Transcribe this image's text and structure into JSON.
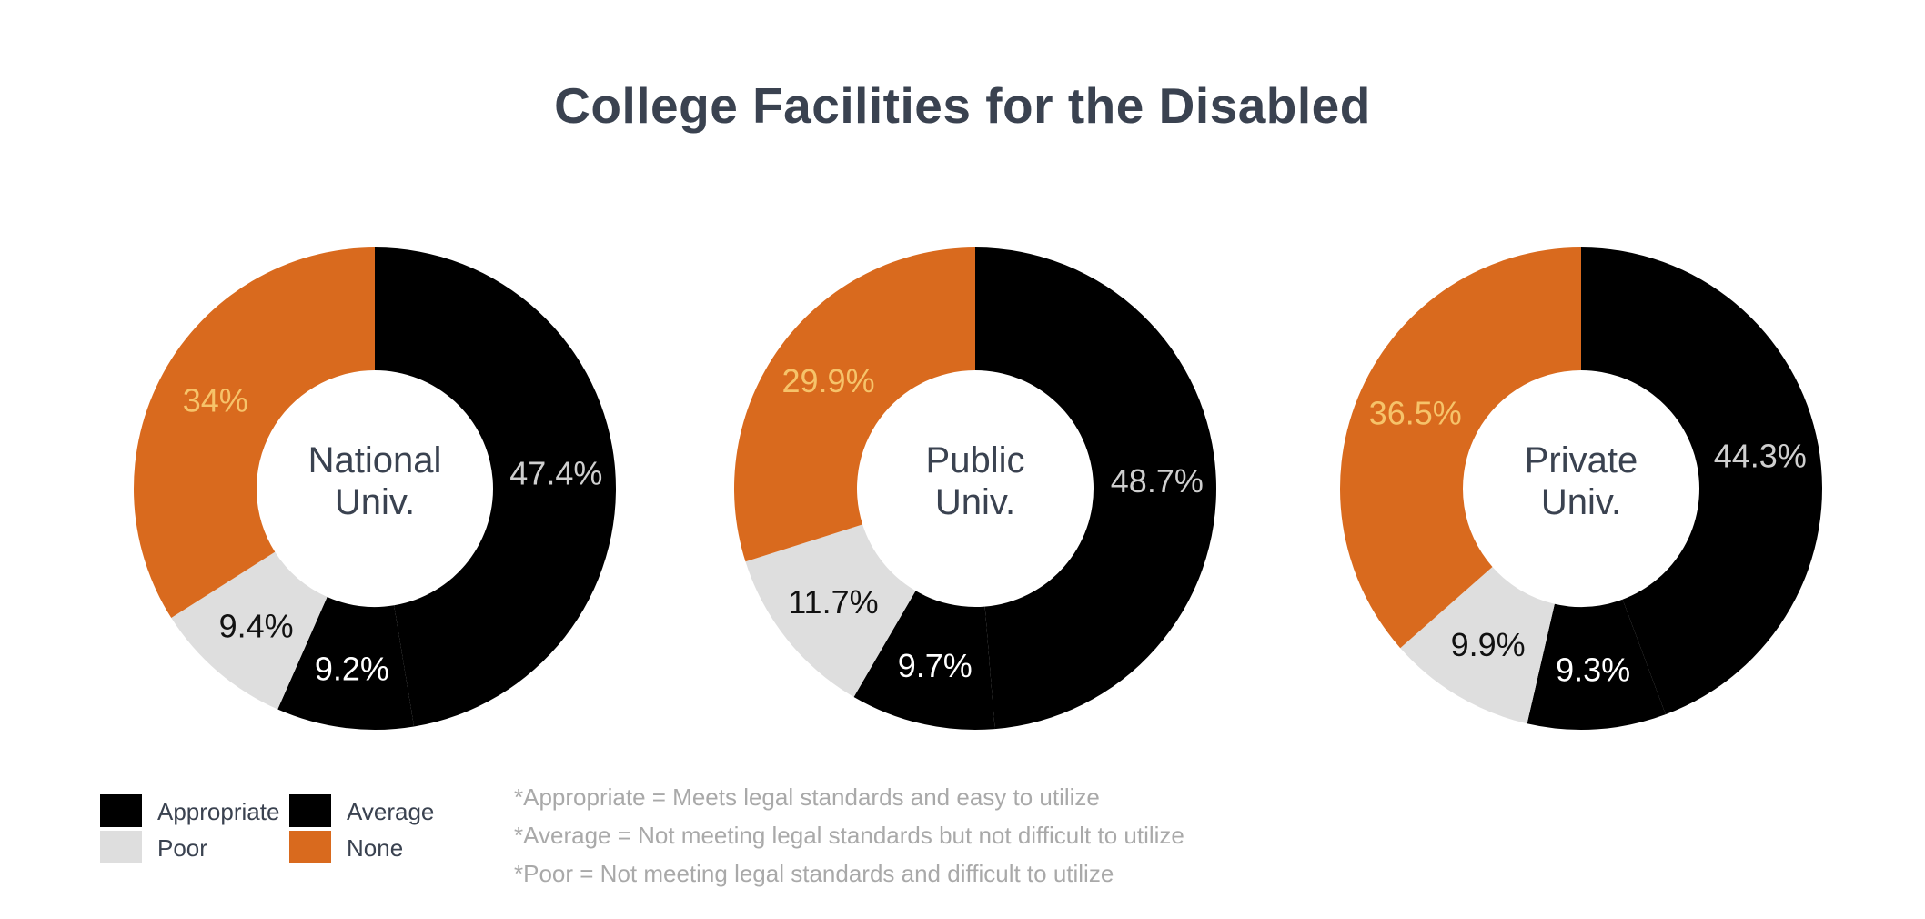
{
  "chart_data": {
    "type": "pie",
    "title": "College Facilities for the Disabled",
    "categories": [
      "Appropriate",
      "Average",
      "Poor",
      "None"
    ],
    "colors": {
      "Appropriate": "#000000",
      "Average": "#000000",
      "Poor": "#dedede",
      "None": "#d96a1e"
    },
    "label_colors": {
      "Average": "#cfcfcf",
      "Appropriate": "#ffffff",
      "Poor": "#111111",
      "None": "#f6c36a"
    },
    "charts": [
      {
        "center_label": [
          "National",
          "Univ."
        ],
        "series": [
          {
            "name": "Average",
            "value": 47.4,
            "label": "47.4%"
          },
          {
            "name": "Appropriate",
            "value": 9.2,
            "label": "9.2%"
          },
          {
            "name": "Poor",
            "value": 9.4,
            "label": "9.4%"
          },
          {
            "name": "None",
            "value": 34.0,
            "label": "34%"
          }
        ]
      },
      {
        "center_label": [
          "Public",
          "Univ."
        ],
        "series": [
          {
            "name": "Average",
            "value": 48.7,
            "label": "48.7%"
          },
          {
            "name": "Appropriate",
            "value": 9.7,
            "label": "9.7%"
          },
          {
            "name": "Poor",
            "value": 11.7,
            "label": "11.7%"
          },
          {
            "name": "None",
            "value": 29.9,
            "label": "29.9%"
          }
        ]
      },
      {
        "center_label": [
          "Private",
          "Univ."
        ],
        "series": [
          {
            "name": "Average",
            "value": 44.3,
            "label": "44.3%"
          },
          {
            "name": "Appropriate",
            "value": 9.3,
            "label": "9.3%"
          },
          {
            "name": "Poor",
            "value": 9.9,
            "label": "9.9%"
          },
          {
            "name": "None",
            "value": 36.5,
            "label": "36.5%"
          }
        ]
      }
    ]
  },
  "legend": {
    "items": [
      {
        "label": "Appropriate",
        "color": "#000000"
      },
      {
        "label": "Average",
        "color": "#000000"
      },
      {
        "label": "Poor",
        "color": "#dedede"
      },
      {
        "label": "None",
        "color": "#d96a1e"
      }
    ]
  },
  "notes": [
    "*Appropriate = Meets legal standards and easy to utilize",
    "*Average = Not meeting legal standards but not difficult to utilize",
    "*Poor = Not meeting legal standards and difficult to utilize"
  ]
}
